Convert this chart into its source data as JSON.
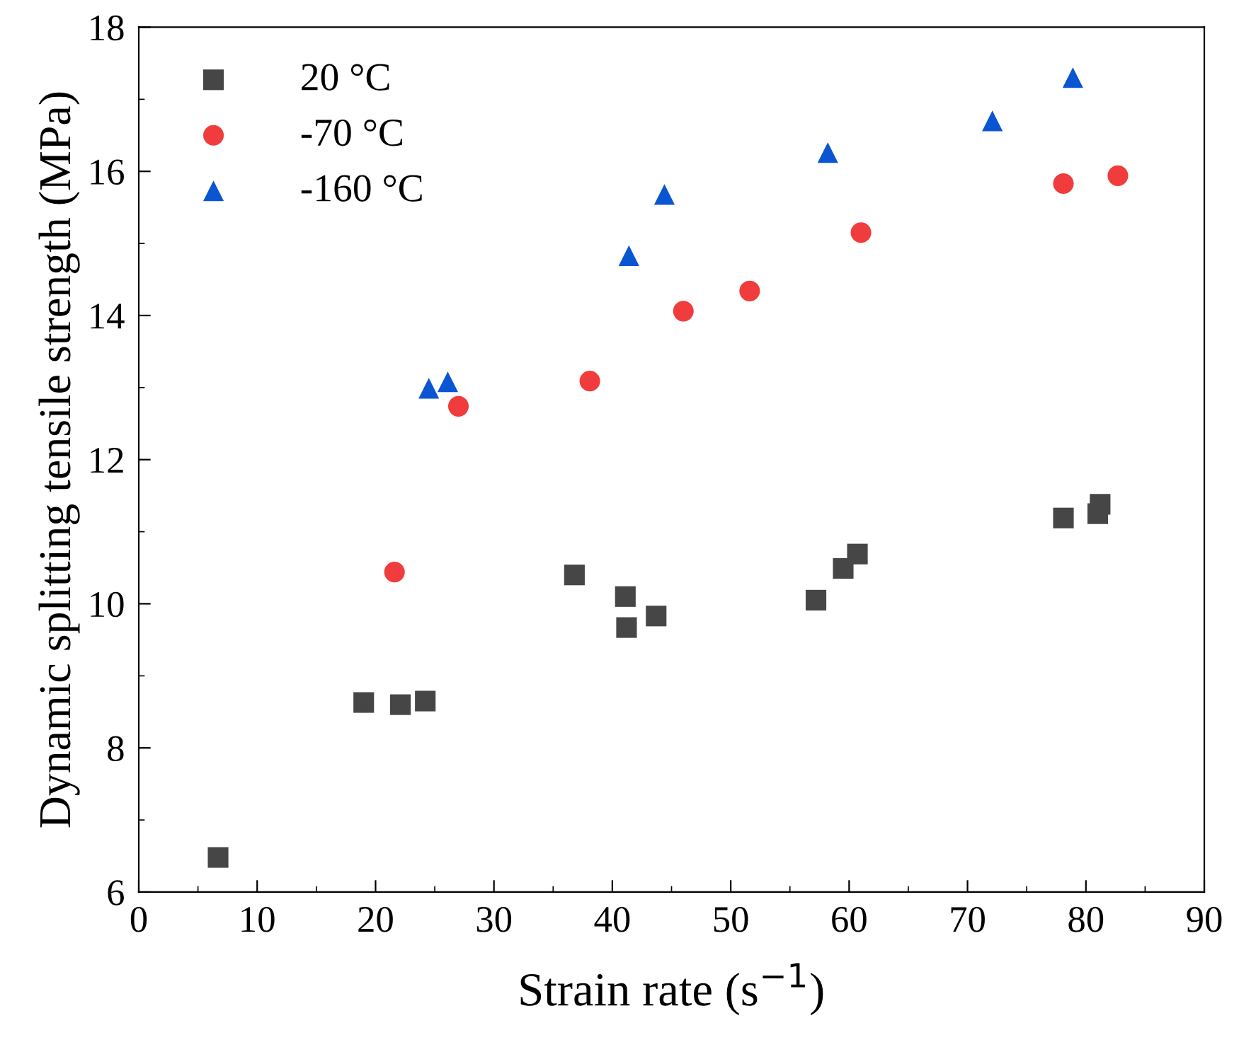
{
  "chart_data": {
    "type": "scatter",
    "xlabel": "Strain rate (s$^{−1}$)",
    "ylabel": "Dynamic splitting tensile strength (MPa)",
    "xlim": [
      0,
      90
    ],
    "xticks": [
      0,
      10,
      20,
      30,
      40,
      50,
      60,
      70,
      80,
      90
    ],
    "ylim": [
      6,
      18
    ],
    "yticks": [
      6,
      8,
      10,
      12,
      14,
      16,
      18
    ],
    "grid": false,
    "legend": "top left",
    "series": [
      {
        "name": "20 °C",
        "color": "#464646",
        "marker": "square",
        "x": [
          6.7,
          19,
          22.1,
          24.2,
          36.8,
          41.1,
          41.2,
          43.7,
          57.2,
          59.5,
          60.7,
          78.1,
          81,
          81.2
        ],
        "values": [
          6.48,
          8.63,
          8.6,
          8.65,
          10.4,
          10.1,
          9.67,
          9.83,
          10.05,
          10.49,
          10.69,
          11.19,
          11.25,
          11.38
        ]
      },
      {
        "name": "-70 °C",
        "color": "#f03c3c",
        "marker": "circle",
        "x": [
          21.6,
          27,
          38.1,
          46,
          51.6,
          61,
          78.1,
          82.7
        ],
        "values": [
          10.44,
          12.74,
          13.09,
          14.06,
          14.34,
          15.15,
          15.83,
          15.94
        ]
      },
      {
        "name": "-160 °C",
        "color": "#0a55d2",
        "marker": "triangle",
        "x": [
          24.5,
          26.1,
          41.4,
          44.4,
          58.2,
          72.1,
          78.9
        ],
        "values": [
          12.99,
          13.08,
          14.83,
          15.68,
          16.26,
          16.7,
          17.3
        ]
      }
    ]
  }
}
